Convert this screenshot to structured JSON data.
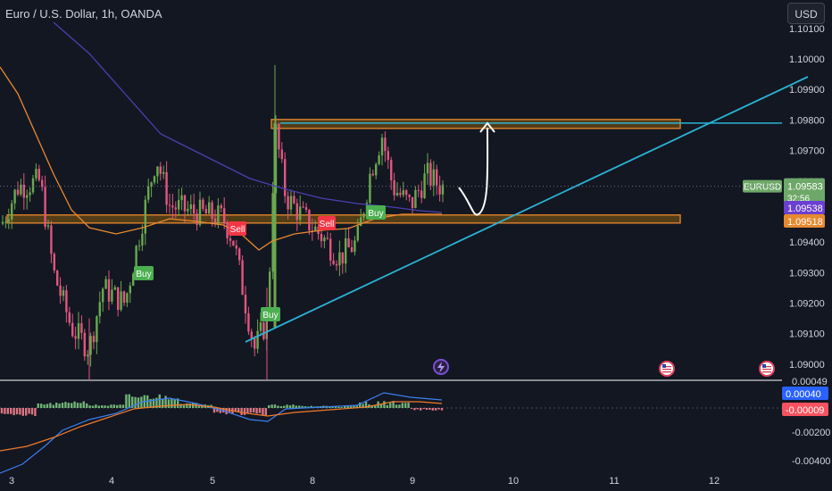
{
  "header": {
    "title": "Euro / U.S. Dollar, 1h, OANDA",
    "currency_button": "USD"
  },
  "colors": {
    "background": "#131722",
    "bull": "#6aa84f",
    "bear": "#e0577f",
    "ma_orange": "#e8892f",
    "ma_blue": "#4a3fb0",
    "trendline": "#2bb4d6",
    "zone_border": "#e8892f",
    "zone_fill": "#5a4216",
    "text": "#d1d4dc",
    "grid": "#2a2e39",
    "eurusd_tag": "#6ea868",
    "blue_tag": "#6b3fd1",
    "orange_tag": "#e8892f",
    "macd_line": "#3b7ff0",
    "signal_line": "#f07a2a"
  },
  "price_axis": {
    "ticks": [
      "1.10100",
      "1.10000",
      "1.09900",
      "1.09800",
      "1.09700",
      "1.09600",
      "1.09400",
      "1.09300",
      "1.09200",
      "1.09100",
      "1.09000"
    ],
    "tags": [
      {
        "label": "EURUSD",
        "value": "1.09583",
        "countdown": "32:56"
      },
      {
        "value": "1.09538"
      },
      {
        "value": "1.09518"
      }
    ]
  },
  "time_axis": {
    "ticks": [
      "3",
      "4",
      "5",
      "8",
      "9",
      "10",
      "11",
      "12"
    ]
  },
  "signals": [
    {
      "text": "Sell",
      "type": "sell"
    },
    {
      "text": "Sell",
      "type": "sell"
    },
    {
      "text": "Buy",
      "type": "buy"
    },
    {
      "text": "Buy",
      "type": "buy"
    },
    {
      "text": "Buy",
      "type": "buy"
    }
  ],
  "macd_axis": {
    "ticks": [
      "0.00049",
      "-0.00200",
      "-0.00400"
    ],
    "tags": [
      {
        "value": "0.00040"
      },
      {
        "value": "-0.00009"
      }
    ]
  },
  "chart_data": {
    "type": "candlestick",
    "title": "Euro / U.S. Dollar, 1h, OANDA",
    "symbol": "EURUSD",
    "last_price": 1.09583,
    "ylim": [
      1.0895,
      1.1012
    ],
    "x_ticks": [
      "3",
      "4",
      "5",
      "8",
      "9",
      "10",
      "11",
      "12"
    ],
    "annotations": {
      "resistance_zone": [
        1.0977,
        1.0979
      ],
      "support_zone": [
        1.0947,
        1.0948
      ],
      "horizontal_line": 1.0979
    },
    "moving_averages": [
      {
        "name": "MA orange",
        "last": 1.09518
      },
      {
        "name": "MA blue",
        "last": 1.09538
      }
    ],
    "macd": {
      "macd": 0.0004,
      "signal": -9e-05
    }
  }
}
